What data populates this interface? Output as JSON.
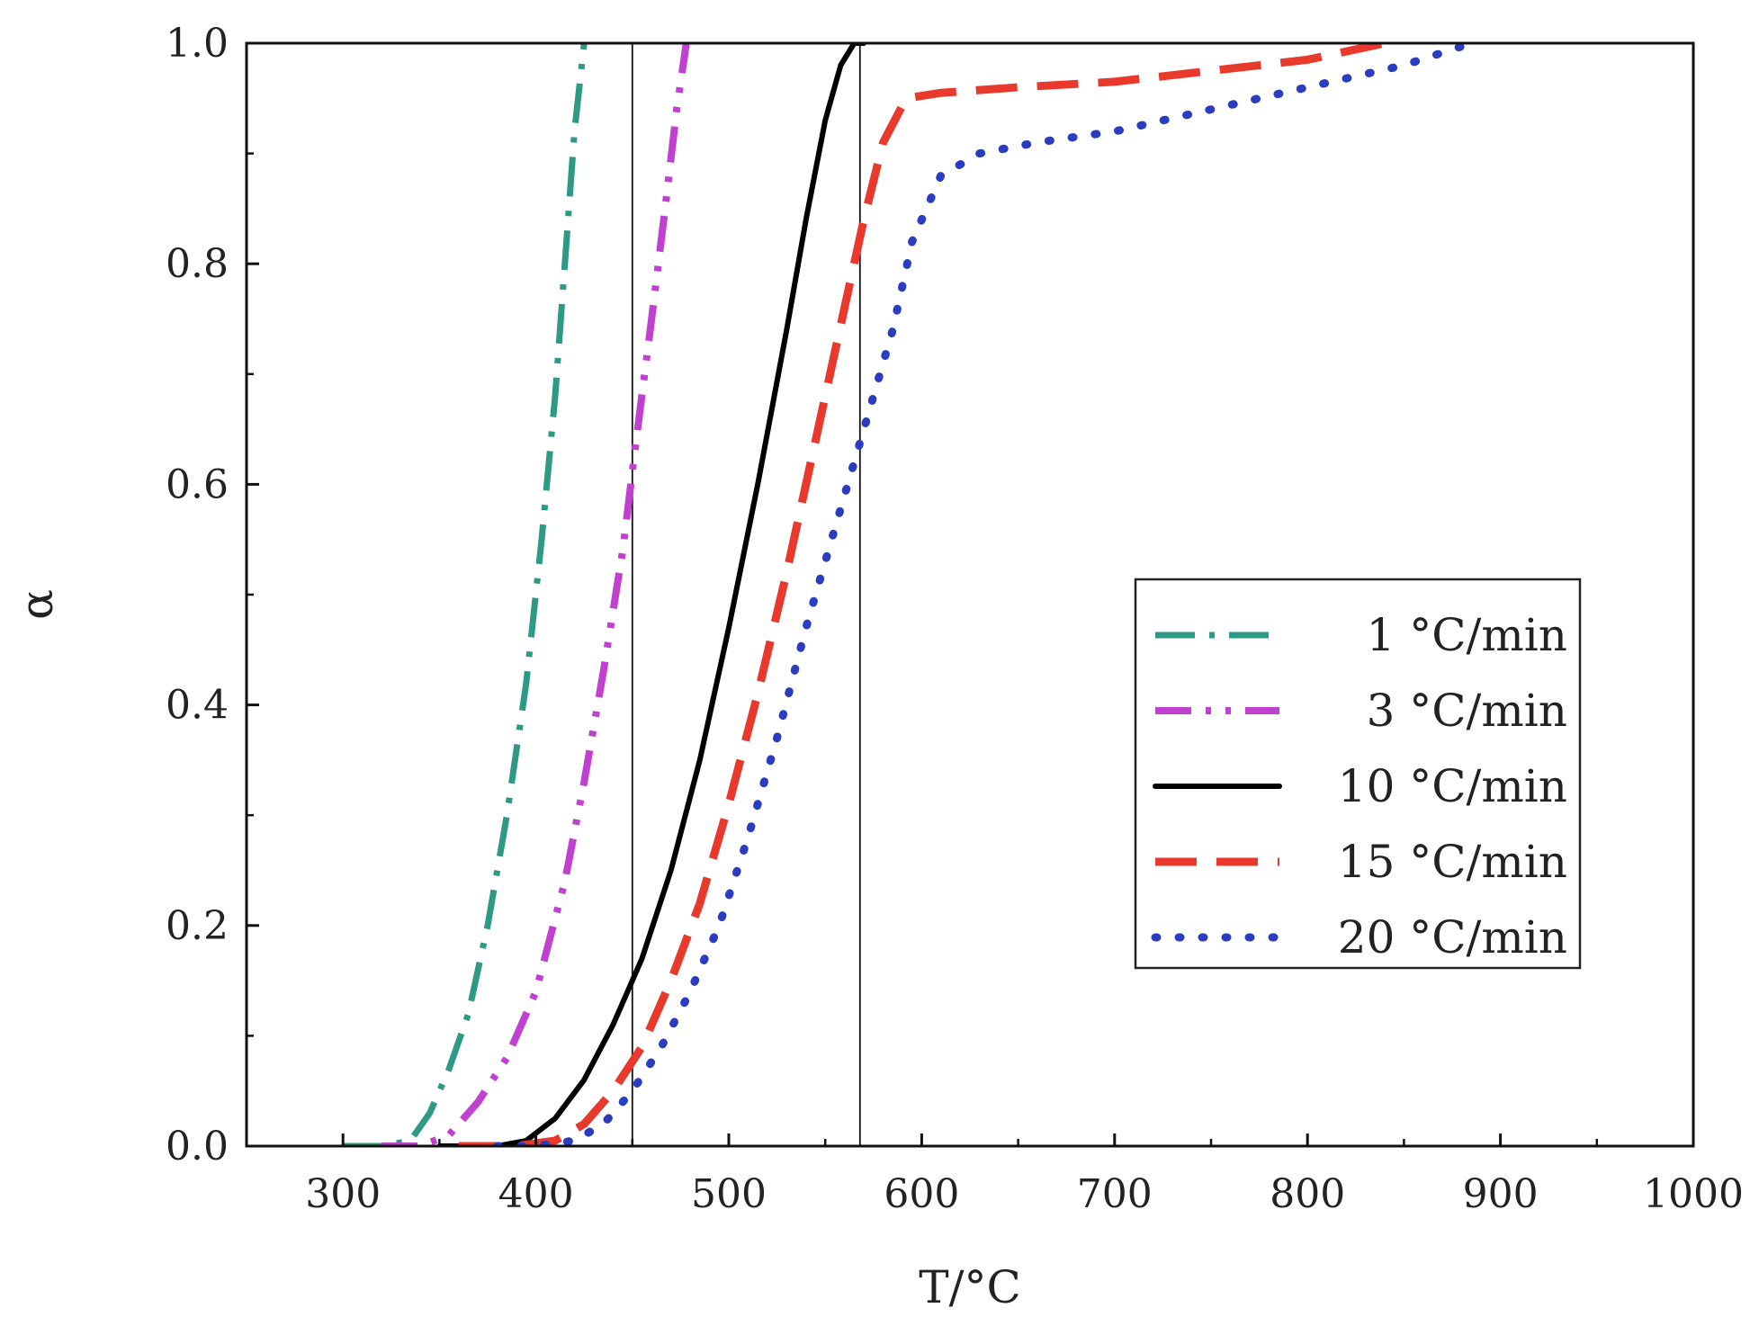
{
  "chart_data": {
    "type": "line",
    "title": "",
    "xlabel": "T/°C",
    "ylabel": "α",
    "xlim": [
      250,
      1000
    ],
    "ylim": [
      0,
      1.0
    ],
    "x_ticks": [
      300,
      400,
      500,
      600,
      700,
      800,
      900,
      1000
    ],
    "x_tick_labels": [
      "300",
      "400",
      "500",
      "600",
      "700",
      "800",
      "900",
      "1000"
    ],
    "y_ticks": [
      0.0,
      0.2,
      0.4,
      0.6,
      0.8,
      1.0
    ],
    "y_tick_labels": [
      "0.0",
      "0.2",
      "0.4",
      "0.6",
      "0.8",
      "1.0"
    ],
    "grid": false,
    "legend_position": "center-right",
    "reference_lines_x": [
      450,
      568
    ],
    "series": [
      {
        "name": "1",
        "legend_label": "1 °C/min",
        "color": "#2e9a86",
        "style": "dashdot",
        "x": [
          300,
          320,
          335,
          345,
          355,
          365,
          375,
          385,
          395,
          403,
          410,
          415,
          420,
          425
        ],
        "y": [
          0.0,
          0.0,
          0.005,
          0.03,
          0.07,
          0.12,
          0.2,
          0.3,
          0.42,
          0.55,
          0.68,
          0.8,
          0.92,
          1.0
        ]
      },
      {
        "name": "3",
        "legend_label": "3 °C/min",
        "color": "#c040d0",
        "style": "dashdotdot",
        "x": [
          320,
          340,
          355,
          370,
          385,
          400,
          415,
          425,
          435,
          445,
          452,
          460,
          467,
          473,
          478
        ],
        "y": [
          0.0,
          0.0,
          0.01,
          0.04,
          0.08,
          0.14,
          0.24,
          0.33,
          0.43,
          0.54,
          0.64,
          0.75,
          0.85,
          0.94,
          1.0
        ]
      },
      {
        "name": "10",
        "legend_label": "10 °C/min",
        "color": "#000000",
        "style": "solid",
        "x": [
          350,
          380,
          395,
          410,
          425,
          440,
          455,
          470,
          485,
          500,
          515,
          530,
          540,
          550,
          558,
          565,
          570
        ],
        "y": [
          0.0,
          0.0,
          0.005,
          0.025,
          0.06,
          0.11,
          0.17,
          0.25,
          0.35,
          0.47,
          0.6,
          0.74,
          0.84,
          0.93,
          0.98,
          1.0,
          1.0
        ]
      },
      {
        "name": "15",
        "legend_label": "15 °C/min",
        "color": "#e8392c",
        "style": "dashed",
        "x": [
          360,
          390,
          410,
          425,
          440,
          455,
          470,
          485,
          500,
          515,
          530,
          545,
          560,
          570,
          580,
          592,
          610,
          650,
          700,
          750,
          800,
          840
        ],
        "y": [
          0.0,
          0.0,
          0.005,
          0.02,
          0.05,
          0.09,
          0.15,
          0.22,
          0.31,
          0.41,
          0.52,
          0.64,
          0.76,
          0.84,
          0.91,
          0.95,
          0.955,
          0.96,
          0.965,
          0.975,
          0.985,
          1.0
        ]
      },
      {
        "name": "20",
        "legend_label": "20 °C/min",
        "color": "#2a3dc0",
        "style": "dotted",
        "x": [
          380,
          400,
          420,
          435,
          450,
          465,
          480,
          495,
          510,
          525,
          540,
          555,
          565,
          575,
          585,
          595,
          610,
          630,
          660,
          700,
          750,
          800,
          850,
          885
        ],
        "y": [
          0.0,
          0.0,
          0.005,
          0.02,
          0.05,
          0.09,
          0.14,
          0.2,
          0.28,
          0.37,
          0.47,
          0.56,
          0.62,
          0.68,
          0.74,
          0.82,
          0.88,
          0.9,
          0.91,
          0.92,
          0.94,
          0.96,
          0.98,
          1.0
        ]
      }
    ]
  }
}
